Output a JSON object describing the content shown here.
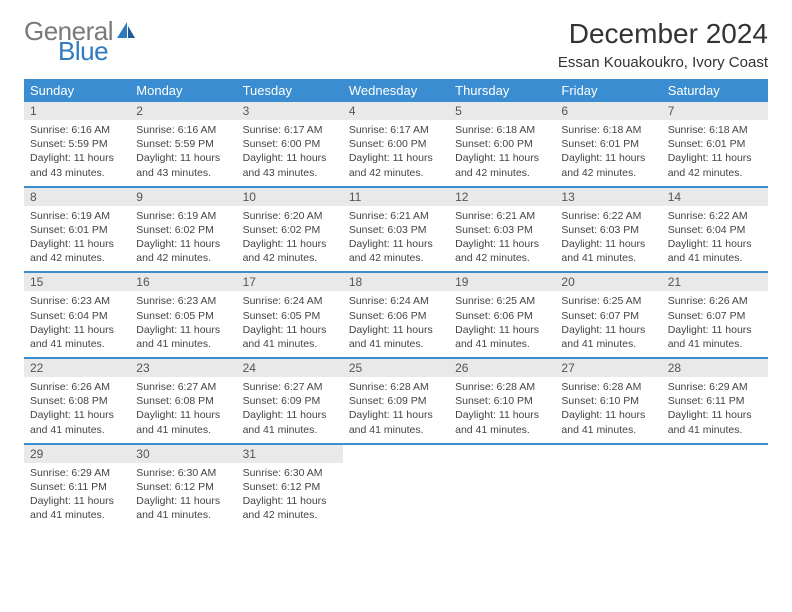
{
  "brand": {
    "line1": "General",
    "line2": "Blue"
  },
  "title": "December 2024",
  "location": "Essan Kouakoukro, Ivory Coast",
  "colors": {
    "header_bg": "#3a8dd0",
    "header_text": "#ffffff",
    "daynum_bg": "#e9e9e9",
    "border": "#3a8dd0",
    "brand_gray": "#7a7a7a",
    "brand_blue": "#2f7bbf"
  },
  "weekdays": [
    "Sunday",
    "Monday",
    "Tuesday",
    "Wednesday",
    "Thursday",
    "Friday",
    "Saturday"
  ],
  "days": [
    {
      "n": "1",
      "sr": "Sunrise: 6:16 AM",
      "ss": "Sunset: 5:59 PM",
      "dl": "Daylight: 11 hours and 43 minutes."
    },
    {
      "n": "2",
      "sr": "Sunrise: 6:16 AM",
      "ss": "Sunset: 5:59 PM",
      "dl": "Daylight: 11 hours and 43 minutes."
    },
    {
      "n": "3",
      "sr": "Sunrise: 6:17 AM",
      "ss": "Sunset: 6:00 PM",
      "dl": "Daylight: 11 hours and 43 minutes."
    },
    {
      "n": "4",
      "sr": "Sunrise: 6:17 AM",
      "ss": "Sunset: 6:00 PM",
      "dl": "Daylight: 11 hours and 42 minutes."
    },
    {
      "n": "5",
      "sr": "Sunrise: 6:18 AM",
      "ss": "Sunset: 6:00 PM",
      "dl": "Daylight: 11 hours and 42 minutes."
    },
    {
      "n": "6",
      "sr": "Sunrise: 6:18 AM",
      "ss": "Sunset: 6:01 PM",
      "dl": "Daylight: 11 hours and 42 minutes."
    },
    {
      "n": "7",
      "sr": "Sunrise: 6:18 AM",
      "ss": "Sunset: 6:01 PM",
      "dl": "Daylight: 11 hours and 42 minutes."
    },
    {
      "n": "8",
      "sr": "Sunrise: 6:19 AM",
      "ss": "Sunset: 6:01 PM",
      "dl": "Daylight: 11 hours and 42 minutes."
    },
    {
      "n": "9",
      "sr": "Sunrise: 6:19 AM",
      "ss": "Sunset: 6:02 PM",
      "dl": "Daylight: 11 hours and 42 minutes."
    },
    {
      "n": "10",
      "sr": "Sunrise: 6:20 AM",
      "ss": "Sunset: 6:02 PM",
      "dl": "Daylight: 11 hours and 42 minutes."
    },
    {
      "n": "11",
      "sr": "Sunrise: 6:21 AM",
      "ss": "Sunset: 6:03 PM",
      "dl": "Daylight: 11 hours and 42 minutes."
    },
    {
      "n": "12",
      "sr": "Sunrise: 6:21 AM",
      "ss": "Sunset: 6:03 PM",
      "dl": "Daylight: 11 hours and 42 minutes."
    },
    {
      "n": "13",
      "sr": "Sunrise: 6:22 AM",
      "ss": "Sunset: 6:03 PM",
      "dl": "Daylight: 11 hours and 41 minutes."
    },
    {
      "n": "14",
      "sr": "Sunrise: 6:22 AM",
      "ss": "Sunset: 6:04 PM",
      "dl": "Daylight: 11 hours and 41 minutes."
    },
    {
      "n": "15",
      "sr": "Sunrise: 6:23 AM",
      "ss": "Sunset: 6:04 PM",
      "dl": "Daylight: 11 hours and 41 minutes."
    },
    {
      "n": "16",
      "sr": "Sunrise: 6:23 AM",
      "ss": "Sunset: 6:05 PM",
      "dl": "Daylight: 11 hours and 41 minutes."
    },
    {
      "n": "17",
      "sr": "Sunrise: 6:24 AM",
      "ss": "Sunset: 6:05 PM",
      "dl": "Daylight: 11 hours and 41 minutes."
    },
    {
      "n": "18",
      "sr": "Sunrise: 6:24 AM",
      "ss": "Sunset: 6:06 PM",
      "dl": "Daylight: 11 hours and 41 minutes."
    },
    {
      "n": "19",
      "sr": "Sunrise: 6:25 AM",
      "ss": "Sunset: 6:06 PM",
      "dl": "Daylight: 11 hours and 41 minutes."
    },
    {
      "n": "20",
      "sr": "Sunrise: 6:25 AM",
      "ss": "Sunset: 6:07 PM",
      "dl": "Daylight: 11 hours and 41 minutes."
    },
    {
      "n": "21",
      "sr": "Sunrise: 6:26 AM",
      "ss": "Sunset: 6:07 PM",
      "dl": "Daylight: 11 hours and 41 minutes."
    },
    {
      "n": "22",
      "sr": "Sunrise: 6:26 AM",
      "ss": "Sunset: 6:08 PM",
      "dl": "Daylight: 11 hours and 41 minutes."
    },
    {
      "n": "23",
      "sr": "Sunrise: 6:27 AM",
      "ss": "Sunset: 6:08 PM",
      "dl": "Daylight: 11 hours and 41 minutes."
    },
    {
      "n": "24",
      "sr": "Sunrise: 6:27 AM",
      "ss": "Sunset: 6:09 PM",
      "dl": "Daylight: 11 hours and 41 minutes."
    },
    {
      "n": "25",
      "sr": "Sunrise: 6:28 AM",
      "ss": "Sunset: 6:09 PM",
      "dl": "Daylight: 11 hours and 41 minutes."
    },
    {
      "n": "26",
      "sr": "Sunrise: 6:28 AM",
      "ss": "Sunset: 6:10 PM",
      "dl": "Daylight: 11 hours and 41 minutes."
    },
    {
      "n": "27",
      "sr": "Sunrise: 6:28 AM",
      "ss": "Sunset: 6:10 PM",
      "dl": "Daylight: 11 hours and 41 minutes."
    },
    {
      "n": "28",
      "sr": "Sunrise: 6:29 AM",
      "ss": "Sunset: 6:11 PM",
      "dl": "Daylight: 11 hours and 41 minutes."
    },
    {
      "n": "29",
      "sr": "Sunrise: 6:29 AM",
      "ss": "Sunset: 6:11 PM",
      "dl": "Daylight: 11 hours and 41 minutes."
    },
    {
      "n": "30",
      "sr": "Sunrise: 6:30 AM",
      "ss": "Sunset: 6:12 PM",
      "dl": "Daylight: 11 hours and 41 minutes."
    },
    {
      "n": "31",
      "sr": "Sunrise: 6:30 AM",
      "ss": "Sunset: 6:12 PM",
      "dl": "Daylight: 11 hours and 42 minutes."
    }
  ]
}
